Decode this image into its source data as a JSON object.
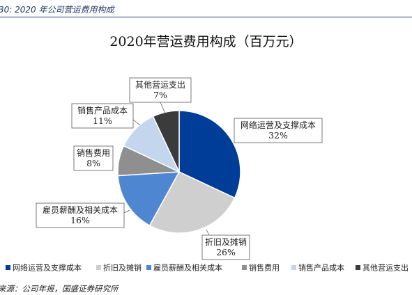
{
  "caption": "30:  2020 年公司营运费用构成",
  "source": "来源：公司年报，国盛证券研究所",
  "chart_data": {
    "type": "pie",
    "title": "2020年营运费用构成（百万元）",
    "legend_position": "bottom",
    "slices": [
      {
        "name": "网络运营及支撑成本",
        "value": 32,
        "label": "32%",
        "color": "#003d99"
      },
      {
        "name": "折旧及摊销",
        "value": 26,
        "label": "26%",
        "color": "#cfcfcf"
      },
      {
        "name": "雇员薪酬及相关成本",
        "value": 16,
        "label": "16%",
        "color": "#4f86d1"
      },
      {
        "name": "销售费用",
        "value": 8,
        "label": "8%",
        "color": "#8f8f8f"
      },
      {
        "name": "销售产品成本",
        "value": 11,
        "label": "11%",
        "color": "#c4d5ee"
      },
      {
        "name": "其他营运支出",
        "value": 7,
        "label": "7%",
        "color": "#3b3b3b"
      }
    ]
  }
}
